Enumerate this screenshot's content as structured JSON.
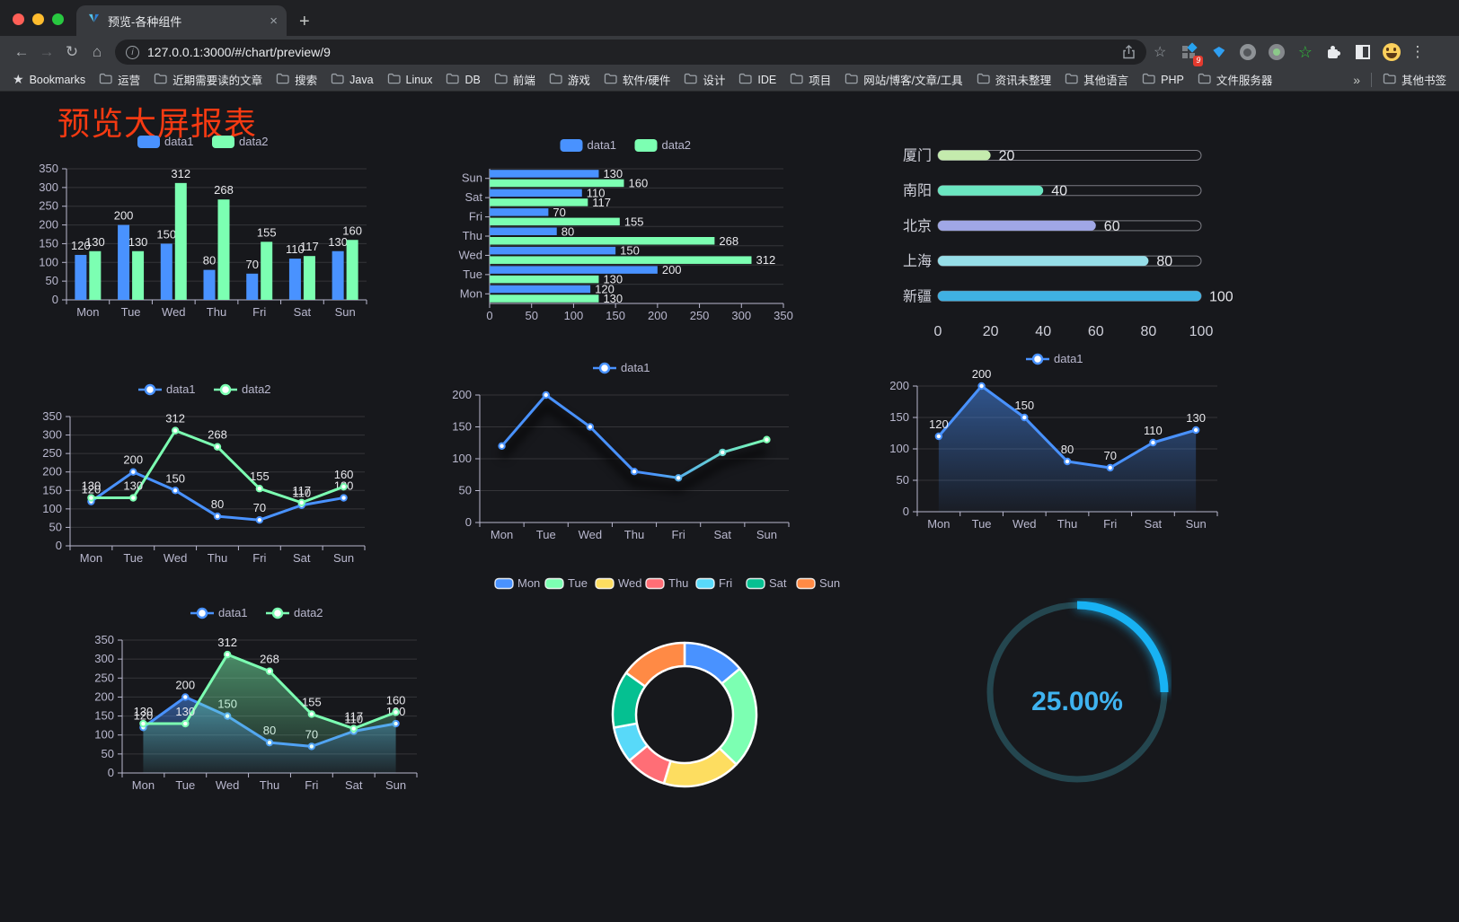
{
  "browser": {
    "tab_title": "预览-各种组件",
    "url": "127.0.0.1:3000/#/chart/preview/9",
    "extension_badge": "9",
    "bookmarks_root_label": "Bookmarks",
    "bookmarks": [
      "运营",
      "近期需要读的文章",
      "搜索",
      "Java",
      "Linux",
      "DB",
      "前端",
      "游戏",
      "软件/硬件",
      "设计",
      "IDE",
      "项目",
      "网站/博客/文章/工具",
      "资讯未整理",
      "其他语言",
      "PHP",
      "文件服务器"
    ],
    "other_bookmarks": "其他书签",
    "icons": {
      "close": "×",
      "plus": "+",
      "back": "←",
      "forward": "→",
      "reload": "↻",
      "home": "⌂",
      "star": "☆",
      "bookmarks_star": "★",
      "dots": "⋮",
      "chevron": "»",
      "info": "i"
    }
  },
  "page": {
    "title": "预览大屏报表",
    "title_color": "#f63a12",
    "background": "#17181c"
  },
  "chart_data": [
    {
      "type": "bar",
      "legend_position": "top",
      "value_labels": true,
      "categories": [
        "Mon",
        "Tue",
        "Wed",
        "Thu",
        "Fri",
        "Sat",
        "Sun"
      ],
      "series": [
        {
          "name": "data1",
          "color": "#4992ff",
          "values": [
            120,
            200,
            150,
            80,
            70,
            110,
            130
          ]
        },
        {
          "name": "data2",
          "color": "#7cffb2",
          "values": [
            130,
            130,
            312,
            268,
            155,
            117,
            160
          ]
        }
      ],
      "ylim": [
        0,
        350
      ],
      "ystep": 50,
      "grid": true
    },
    {
      "type": "hbar",
      "legend_position": "top",
      "value_labels": true,
      "categories": [
        "Mon",
        "Tue",
        "Wed",
        "Thu",
        "Fri",
        "Sat",
        "Sun"
      ],
      "series": [
        {
          "name": "data1",
          "color": "#4992ff",
          "values": [
            120,
            200,
            150,
            80,
            70,
            110,
            130
          ]
        },
        {
          "name": "data2",
          "color": "#7cffb2",
          "values": [
            130,
            130,
            312,
            268,
            155,
            117,
            160
          ]
        }
      ],
      "xlim": [
        0,
        350
      ],
      "xstep": 50,
      "grid": true
    },
    {
      "type": "progress",
      "categories": [
        "厦门",
        "南阳",
        "北京",
        "上海",
        "新疆"
      ],
      "values": [
        20,
        40,
        60,
        80,
        100
      ],
      "colors": [
        "#c4ebad",
        "#6be6c1",
        "#a0a7e6",
        "#96dee8",
        "#3fb1e3"
      ],
      "xlim": [
        0,
        100
      ],
      "xticks": [
        0,
        20,
        40,
        60,
        80,
        100
      ]
    },
    {
      "type": "line",
      "legend_position": "top",
      "value_labels": true,
      "categories": [
        "Mon",
        "Tue",
        "Wed",
        "Thu",
        "Fri",
        "Sat",
        "Sun"
      ],
      "series": [
        {
          "name": "data1",
          "color": "#4992ff",
          "values": [
            120,
            200,
            150,
            80,
            70,
            110,
            130
          ]
        },
        {
          "name": "data2",
          "color": "#7cffb2",
          "values": [
            130,
            130,
            312,
            268,
            155,
            117,
            160
          ]
        }
      ],
      "ylim": [
        0,
        350
      ],
      "ystep": 50,
      "grid": true
    },
    {
      "type": "line",
      "legend_position": "top",
      "value_labels": false,
      "shadow": true,
      "categories": [
        "Mon",
        "Tue",
        "Wed",
        "Thu",
        "Fri",
        "Sat",
        "Sun"
      ],
      "series": [
        {
          "name": "data1",
          "color": "#4992ff",
          "gradient_to": "#7cffb2",
          "values": [
            120,
            200,
            150,
            80,
            70,
            110,
            130
          ]
        }
      ],
      "ylim": [
        0,
        200
      ],
      "ystep": 50,
      "grid": true
    },
    {
      "type": "area",
      "legend_position": "top",
      "value_labels": true,
      "categories": [
        "Mon",
        "Tue",
        "Wed",
        "Thu",
        "Fri",
        "Sat",
        "Sun"
      ],
      "series": [
        {
          "name": "data1",
          "color": "#4992ff",
          "values": [
            120,
            200,
            150,
            80,
            70,
            110,
            130
          ]
        }
      ],
      "ylim": [
        0,
        200
      ],
      "ystep": 50,
      "grid": true
    },
    {
      "type": "area",
      "legend_position": "top",
      "value_labels": true,
      "categories": [
        "Mon",
        "Tue",
        "Wed",
        "Thu",
        "Fri",
        "Sat",
        "Sun"
      ],
      "series": [
        {
          "name": "data1",
          "color": "#4992ff",
          "values": [
            120,
            200,
            150,
            80,
            70,
            110,
            130
          ]
        },
        {
          "name": "data2",
          "color": "#7cffb2",
          "values": [
            130,
            130,
            312,
            268,
            155,
            117,
            160
          ]
        }
      ],
      "ylim": [
        0,
        350
      ],
      "ystep": 50,
      "grid": true
    },
    {
      "type": "pie",
      "subtype": "donut",
      "legend_position": "top",
      "categories": [
        "Mon",
        "Tue",
        "Wed",
        "Thu",
        "Fri",
        "Sat",
        "Sun"
      ],
      "values": [
        120,
        200,
        150,
        80,
        70,
        110,
        130
      ],
      "colors": [
        "#4992ff",
        "#7cffb2",
        "#fddd60",
        "#ff6e76",
        "#58d9f9",
        "#05c091",
        "#ff8a45"
      ]
    },
    {
      "type": "gauge",
      "value": 25,
      "label": "25.00%",
      "color": "#18b2f3",
      "track_color": "#24464f",
      "text_color": "#3fb3f0"
    }
  ]
}
